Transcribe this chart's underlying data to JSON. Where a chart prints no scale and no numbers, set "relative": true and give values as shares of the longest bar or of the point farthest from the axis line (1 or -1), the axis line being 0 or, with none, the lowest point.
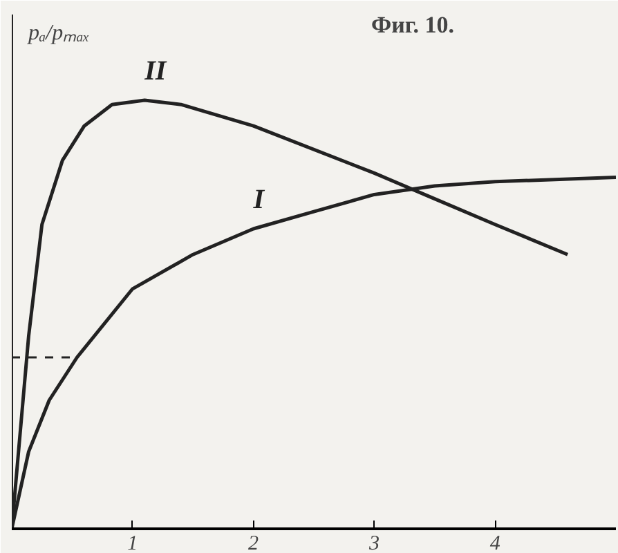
{
  "chart_data": {
    "type": "line",
    "title": "Фиг. 10.",
    "ylabel": "pₐ/pₘₐₓ",
    "relative": true,
    "xlim": [
      0,
      5.0
    ],
    "xticks": [
      1,
      2,
      3,
      4
    ],
    "grid": false,
    "marker": "none",
    "line_style": "solid",
    "series": [
      {
        "name": "I",
        "color": "#222222",
        "x": [
          0,
          0.14,
          0.31,
          0.54,
          1,
          1.5,
          2,
          2.5,
          3,
          3.5,
          4,
          5.0
        ],
        "values": [
          0,
          0.18,
          0.3,
          0.4,
          0.56,
          0.64,
          0.7,
          0.74,
          0.78,
          0.8,
          0.81,
          0.82
        ]
      },
      {
        "name": "II",
        "color": "#222222",
        "x": [
          0,
          0.14,
          0.25,
          0.42,
          0.6,
          0.83,
          1.1,
          1.4,
          2,
          3,
          3.5,
          4,
          4.6
        ],
        "values": [
          0,
          0.45,
          0.71,
          0.86,
          0.94,
          0.99,
          1.0,
          0.99,
          0.94,
          0.83,
          0.77,
          0.71,
          0.64
        ]
      }
    ],
    "ref_lines": [
      {
        "axis": "y",
        "value": 0.4,
        "line_style": "dashed",
        "color": "#222222"
      }
    ]
  }
}
